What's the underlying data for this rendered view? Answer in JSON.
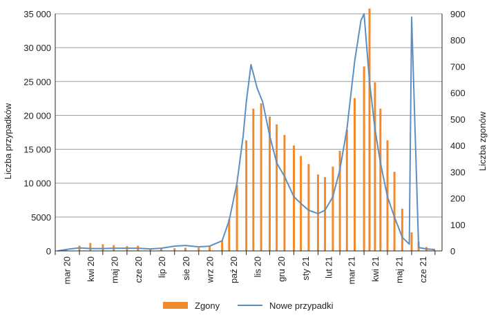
{
  "chart_data": {
    "type": "bar+line",
    "title": "",
    "xlabel": "",
    "ylabel_left": "Liczba przypadków",
    "ylabel_right": "Liczba zgonów",
    "left_axis": {
      "min": 0,
      "max": 35000,
      "ticks": [
        "0",
        "5000",
        "10 000",
        "15 000",
        "20 000",
        "25 000",
        "30 000",
        "35 000"
      ],
      "tick_values": [
        0,
        5000,
        10000,
        15000,
        20000,
        25000,
        30000,
        35000
      ]
    },
    "right_axis": {
      "min": 0,
      "max": 900,
      "ticks": [
        "0",
        "100",
        "200",
        "300",
        "400",
        "500",
        "600",
        "700",
        "800",
        "900"
      ],
      "tick_values": [
        0,
        100,
        200,
        300,
        400,
        500,
        600,
        700,
        800,
        900
      ]
    },
    "x_ticks": [
      "mar 20",
      "kwi 20",
      "maj 20",
      "cze 20",
      "lip 20",
      "sie 20",
      "wrz 20",
      "paź 20",
      "lis 20",
      "gru 20",
      "sty 21",
      "lut 21",
      "mar 21",
      "kwi 21",
      "maj 21",
      "cze 21"
    ],
    "grid": true,
    "legend_position": "bottom",
    "colors": {
      "bars": "#f08a2c",
      "line": "#5b8fc4",
      "grid": "#9a9a9a",
      "axis": "#222222"
    },
    "series": [
      {
        "name": "Zgony",
        "type": "bar",
        "axis": "right",
        "x": [
          "2020-03-15",
          "2020-04-01",
          "2020-04-15",
          "2020-05-01",
          "2020-05-15",
          "2020-06-01",
          "2020-06-15",
          "2020-07-01",
          "2020-07-15",
          "2020-08-01",
          "2020-08-15",
          "2020-09-01",
          "2020-09-15",
          "2020-10-01",
          "2020-10-10",
          "2020-10-20",
          "2020-11-01",
          "2020-11-10",
          "2020-11-20",
          "2020-12-01",
          "2020-12-10",
          "2020-12-20",
          "2021-01-01",
          "2021-01-10",
          "2021-01-20",
          "2021-02-01",
          "2021-02-10",
          "2021-02-20",
          "2021-03-01",
          "2021-03-10",
          "2021-03-20",
          "2021-04-01",
          "2021-04-08",
          "2021-04-15",
          "2021-04-22",
          "2021-05-01",
          "2021-05-10",
          "2021-05-20",
          "2021-06-01",
          "2021-06-10",
          "2021-06-20",
          "2021-06-30"
        ],
        "values": [
          5,
          20,
          30,
          25,
          22,
          18,
          20,
          10,
          8,
          10,
          12,
          12,
          18,
          40,
          120,
          250,
          420,
          540,
          560,
          510,
          480,
          440,
          400,
          360,
          330,
          290,
          280,
          320,
          380,
          460,
          580,
          700,
          920,
          640,
          540,
          420,
          300,
          160,
          70,
          35,
          15,
          8
        ]
      },
      {
        "name": "Nowe przypadki",
        "type": "line",
        "axis": "left",
        "x": [
          "2020-03-04",
          "2020-03-20",
          "2020-04-01",
          "2020-04-15",
          "2020-05-01",
          "2020-05-15",
          "2020-06-01",
          "2020-06-15",
          "2020-07-01",
          "2020-07-15",
          "2020-08-01",
          "2020-08-15",
          "2020-09-01",
          "2020-09-15",
          "2020-10-01",
          "2020-10-10",
          "2020-10-20",
          "2020-10-28",
          "2020-11-01",
          "2020-11-07",
          "2020-11-15",
          "2020-11-22",
          "2020-12-01",
          "2020-12-10",
          "2020-12-20",
          "2021-01-01",
          "2021-01-10",
          "2021-01-20",
          "2021-02-01",
          "2021-02-10",
          "2021-02-20",
          "2021-03-01",
          "2021-03-10",
          "2021-03-20",
          "2021-03-28",
          "2021-04-01",
          "2021-04-08",
          "2021-04-15",
          "2021-04-22",
          "2021-05-01",
          "2021-05-10",
          "2021-05-20",
          "2021-05-29",
          "2021-06-01",
          "2021-06-10",
          "2021-06-20",
          "2021-06-30"
        ],
        "values": [
          0,
          300,
          450,
          350,
          350,
          400,
          400,
          400,
          300,
          400,
          700,
          800,
          600,
          700,
          1500,
          4500,
          10000,
          17000,
          22000,
          27500,
          24000,
          22000,
          17000,
          13000,
          11000,
          8000,
          7000,
          6000,
          5500,
          6000,
          8000,
          12000,
          18000,
          28000,
          34000,
          35000,
          25000,
          18000,
          13000,
          8000,
          5000,
          2000,
          1000,
          34500,
          500,
          300,
          200
        ]
      }
    ]
  }
}
